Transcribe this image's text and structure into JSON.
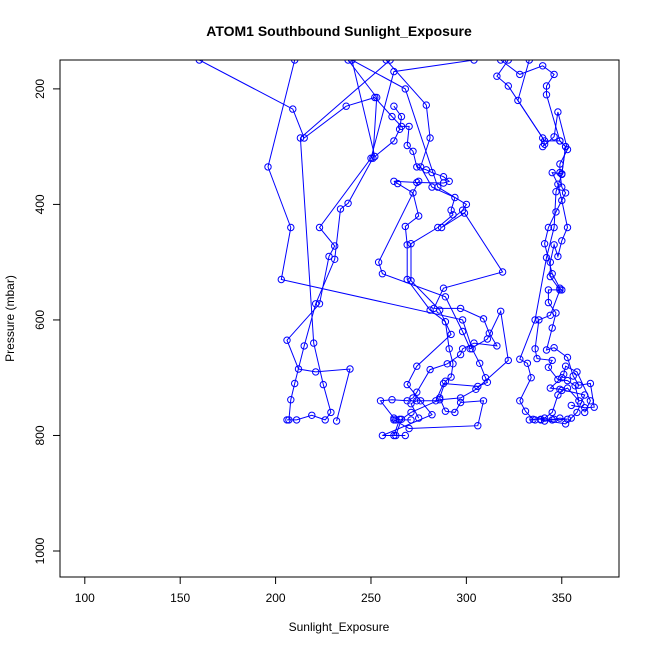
{
  "chart_data": {
    "type": "line",
    "title": "ATOM1 Southbound Sunlight_Exposure",
    "xlabel": "Sunlight_Exposure",
    "ylabel": "Pressure (mbar)",
    "xlim": [
      87,
      380
    ],
    "ylim": [
      1045,
      150
    ],
    "y_reversed": true,
    "xticks": [
      100,
      150,
      200,
      250,
      300,
      350
    ],
    "yticks": [
      200,
      400,
      600,
      800,
      1000
    ],
    "grid": false,
    "legend": "none",
    "series_color": "#0000ff",
    "marker": "open-circle",
    "series": [
      {
        "values": [
          [
            160,
            150
          ],
          [
            209,
            235
          ],
          [
            215,
            285
          ],
          [
            237,
            230
          ],
          [
            252,
            215
          ],
          [
            261,
            248
          ],
          [
            266,
            265
          ],
          [
            270,
            265
          ],
          [
            269,
            298
          ],
          [
            272,
            308
          ],
          [
            274,
            335
          ],
          [
            279,
            340
          ],
          [
            282,
            345
          ],
          [
            288,
            352
          ],
          [
            291,
            360
          ],
          [
            288,
            363
          ],
          [
            274,
            362
          ],
          [
            262,
            360
          ],
          [
            264,
            364
          ],
          [
            272,
            380
          ],
          [
            275,
            420
          ],
          [
            268,
            438
          ],
          [
            269,
            470
          ],
          [
            269,
            530
          ],
          [
            281,
            583
          ],
          [
            289,
            603
          ],
          [
            291,
            650
          ],
          [
            293,
            676
          ],
          [
            292,
            699
          ],
          [
            289,
            706
          ],
          [
            286,
            735
          ],
          [
            289,
            758
          ],
          [
            294,
            760
          ],
          [
            297,
            743
          ],
          [
            309,
            740
          ],
          [
            306,
            783
          ],
          [
            270,
            788
          ],
          [
            262,
            773
          ],
          [
            271,
            773
          ],
          [
            263,
            773
          ]
        ]
      },
      {
        "values": [
          [
            210,
            150
          ],
          [
            196,
            335
          ],
          [
            208,
            440
          ],
          [
            203,
            530
          ],
          [
            298,
            600
          ],
          [
            303,
            650
          ],
          [
            307,
            675
          ],
          [
            310,
            700
          ],
          [
            311,
            708
          ],
          [
            306,
            715
          ],
          [
            288,
            710
          ],
          [
            284,
            740
          ],
          [
            274,
            740
          ],
          [
            271,
            745
          ],
          [
            275,
            770
          ]
        ]
      },
      {
        "values": [
          [
            258,
            150
          ],
          [
            279,
            228
          ],
          [
            281,
            285
          ],
          [
            276,
            335
          ],
          [
            282,
            370
          ],
          [
            294,
            388
          ],
          [
            292,
            410
          ],
          [
            293,
            418
          ],
          [
            285,
            440
          ],
          [
            271,
            468
          ],
          [
            271,
            532
          ],
          [
            286,
            583
          ],
          [
            292,
            625
          ],
          [
            274,
            680
          ],
          [
            269,
            712
          ],
          [
            276,
            740
          ],
          [
            282,
            764
          ],
          [
            256,
            800
          ],
          [
            268,
            800
          ]
        ]
      },
      {
        "values": [
          [
            240,
            150
          ],
          [
            252,
            317
          ],
          [
            262,
            290
          ],
          [
            265,
            270
          ],
          [
            266,
            248
          ],
          [
            262,
            230
          ]
        ]
      },
      {
        "values": [
          [
            260,
            150
          ],
          [
            213,
            285
          ],
          [
            220,
            640
          ],
          [
            225,
            712
          ],
          [
            229,
            760
          ],
          [
            226,
            773
          ],
          [
            219,
            765
          ],
          [
            211,
            773
          ],
          [
            206,
            773
          ]
        ]
      },
      {
        "values": [
          [
            238,
            150
          ],
          [
            253,
            215
          ],
          [
            251,
            320
          ],
          [
            238,
            398
          ],
          [
            234,
            408
          ],
          [
            231,
            495
          ],
          [
            221,
            572
          ],
          [
            215,
            645
          ],
          [
            210,
            710
          ],
          [
            208,
            738
          ],
          [
            207,
            773
          ]
        ]
      },
      {
        "values": [
          [
            304,
            150
          ],
          [
            262,
            170
          ],
          [
            250,
            320
          ],
          [
            223,
            440
          ],
          [
            231,
            472
          ],
          [
            228,
            490
          ],
          [
            223,
            572
          ],
          [
            206,
            635
          ],
          [
            212,
            685
          ],
          [
            221,
            690
          ],
          [
            239,
            685
          ],
          [
            232,
            775
          ]
        ]
      },
      {
        "values": [
          [
            240,
            150
          ],
          [
            268,
            200
          ],
          [
            285,
            370
          ],
          [
            300,
            400
          ],
          [
            298,
            410
          ],
          [
            287,
            440
          ],
          [
            299,
            415
          ],
          [
            319,
            517
          ],
          [
            288,
            545
          ],
          [
            283,
            580
          ],
          [
            297,
            580
          ],
          [
            309,
            598
          ],
          [
            312,
            623
          ],
          [
            316,
            645
          ],
          [
            304,
            640
          ],
          [
            298,
            650
          ],
          [
            297,
            660
          ],
          [
            290,
            676
          ],
          [
            281,
            686
          ],
          [
            274,
            725
          ],
          [
            272,
            735
          ],
          [
            269,
            740
          ],
          [
            261,
            738
          ],
          [
            255,
            740
          ],
          [
            262,
            770
          ],
          [
            265,
            772
          ],
          [
            262,
            800
          ]
        ]
      },
      {
        "values": [
          [
            275,
            360
          ],
          [
            254,
            500
          ],
          [
            256,
            520
          ],
          [
            289,
            560
          ],
          [
            298,
            620
          ],
          [
            302,
            650
          ],
          [
            311,
            633
          ],
          [
            318,
            585
          ],
          [
            322,
            670
          ],
          [
            305,
            720
          ],
          [
            297,
            735
          ],
          [
            286,
            738
          ],
          [
            271,
            760
          ],
          [
            266,
            772
          ],
          [
            263,
            800
          ]
        ]
      },
      {
        "values": [
          [
            322,
            150
          ],
          [
            316,
            178
          ],
          [
            322,
            195
          ],
          [
            340,
            285
          ],
          [
            341,
            296
          ],
          [
            340,
            300
          ],
          [
            346,
            283
          ],
          [
            348,
            240
          ],
          [
            353,
            305
          ],
          [
            349,
            330
          ],
          [
            349,
            345
          ],
          [
            350,
            370
          ],
          [
            352,
            380
          ],
          [
            347,
            413
          ],
          [
            343,
            440
          ],
          [
            341,
            468
          ],
          [
            345,
            520
          ],
          [
            349,
            545
          ],
          [
            350,
            548
          ],
          [
            343,
            548
          ],
          [
            343,
            570
          ],
          [
            347,
            588
          ],
          [
            345,
            614
          ],
          [
            342,
            652
          ],
          [
            346,
            648
          ],
          [
            353,
            665
          ],
          [
            356,
            697
          ],
          [
            359,
            713
          ],
          [
            365,
            710
          ],
          [
            367,
            751
          ],
          [
            362,
            752
          ],
          [
            355,
            748
          ]
        ]
      },
      {
        "values": [
          [
            318,
            150
          ],
          [
            328,
            175
          ],
          [
            340,
            160
          ],
          [
            346,
            175
          ],
          [
            342,
            195
          ],
          [
            342,
            210
          ],
          [
            349,
            290
          ],
          [
            352,
            300
          ],
          [
            350,
            347
          ],
          [
            345,
            345
          ],
          [
            348,
            365
          ],
          [
            350,
            393
          ],
          [
            353,
            440
          ],
          [
            350,
            463
          ],
          [
            348,
            490
          ],
          [
            346,
            470
          ],
          [
            344,
            500
          ],
          [
            344,
            525
          ],
          [
            349,
            548
          ],
          [
            344,
            592
          ],
          [
            338,
            600
          ],
          [
            336,
            650
          ],
          [
            337,
            667
          ],
          [
            345,
            670
          ],
          [
            343,
            682
          ],
          [
            348,
            703
          ],
          [
            353,
            705
          ],
          [
            357,
            714
          ],
          [
            359,
            740
          ],
          [
            353,
            718
          ],
          [
            350,
            722
          ],
          [
            348,
            730
          ],
          [
            345,
            760
          ],
          [
            341,
            770
          ],
          [
            333,
            773
          ],
          [
            336,
            773
          ]
        ]
      },
      {
        "values": [
          [
            333,
            150
          ],
          [
            327,
            220
          ],
          [
            341,
            290
          ],
          [
            349,
            290
          ],
          [
            352,
            300
          ],
          [
            350,
            348
          ],
          [
            347,
            378
          ],
          [
            346,
            440
          ],
          [
            342,
            492
          ],
          [
            336,
            600
          ],
          [
            328,
            668
          ],
          [
            332,
            675
          ],
          [
            334,
            700
          ],
          [
            328,
            740
          ],
          [
            331,
            758
          ],
          [
            335,
            772
          ],
          [
            339,
            772
          ],
          [
            346,
            772
          ],
          [
            349,
            770
          ],
          [
            353,
            772
          ],
          [
            345,
            773
          ],
          [
            341,
            775
          ],
          [
            339,
            773
          ],
          [
            352,
            780
          ],
          [
            355,
            770
          ],
          [
            358,
            760
          ],
          [
            360,
            745
          ],
          [
            362,
            730
          ],
          [
            349,
            720
          ],
          [
            344,
            718
          ],
          [
            350,
            700
          ],
          [
            351,
            694
          ],
          [
            352,
            680
          ],
          [
            358,
            690
          ],
          [
            365,
            740
          ],
          [
            362,
            760
          ]
        ]
      }
    ]
  }
}
